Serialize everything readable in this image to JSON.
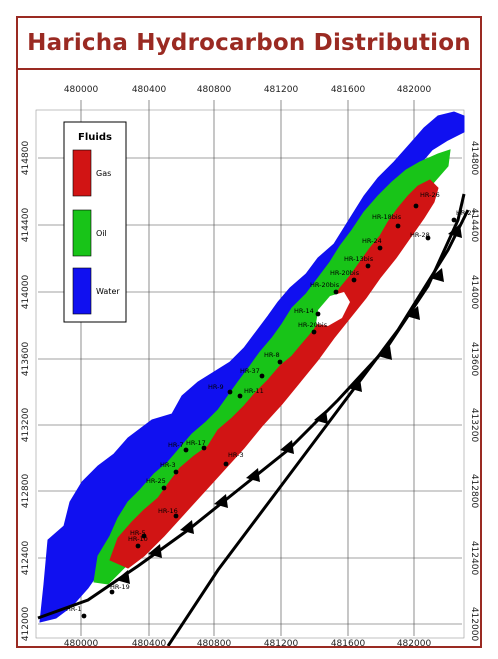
{
  "title": "Haricha Hydrocarbon Distribution",
  "legend": {
    "heading": "Fluids",
    "items": [
      {
        "label": "Gas",
        "color": "#d11414"
      },
      {
        "label": "Oil",
        "color": "#18c418"
      },
      {
        "label": "Water",
        "color": "#1010f0"
      }
    ]
  },
  "axes": {
    "x_ticks": [
      "480000",
      "480400",
      "480800",
      "481200",
      "481600",
      "482000"
    ],
    "y_ticks": [
      "414800",
      "414400",
      "414000",
      "413600",
      "413200",
      "412800",
      "412400",
      "412000"
    ]
  },
  "wells": [
    "HR-26",
    "HR-18bis",
    "HR-28",
    "HR-24",
    "HR-13bis",
    "HR-20bis",
    "HR-20bis",
    "HR-14",
    "HR-20bis",
    "HR-8",
    "HR-37",
    "HR-9",
    "HR-11",
    "HR-7",
    "HR-17",
    "HR-3",
    "HR-3",
    "HR-25",
    "HR-16",
    "HR-5",
    "HR-10",
    "HR-19",
    "HR-1",
    "HR-27"
  ]
}
